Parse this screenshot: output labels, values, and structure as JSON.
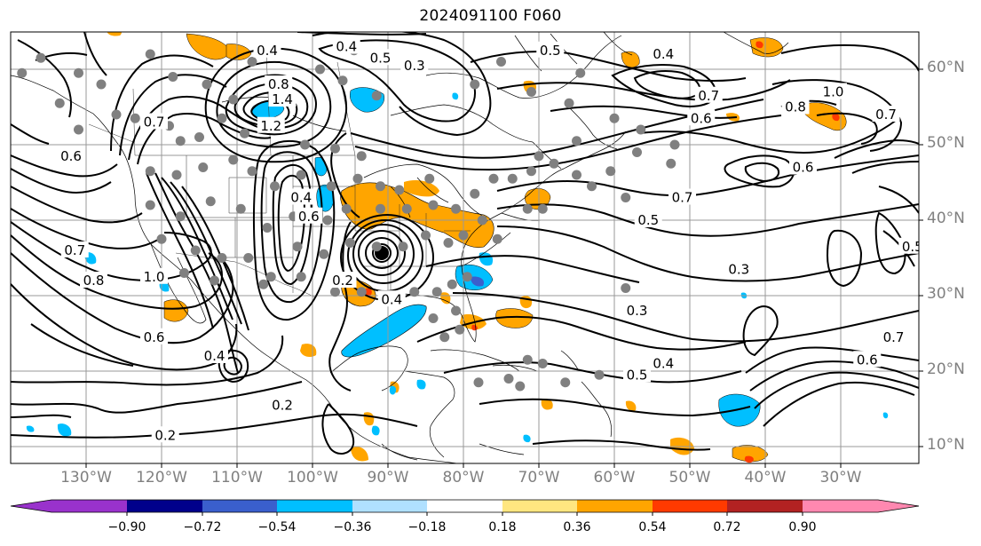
{
  "title": "2024091100 F060",
  "lat_labels": [
    "60°N",
    "50°N",
    "40°N",
    "30°N",
    "20°N",
    "10°N"
  ],
  "lon_labels": [
    "130°W",
    "120°W",
    "110°W",
    "100°W",
    "90°W",
    "80°W",
    "70°W",
    "60°W",
    "50°W",
    "40°W",
    "30°W"
  ],
  "contour_labels": [
    {
      "text": "0.2",
      "lon": -119.5,
      "lat": 11.5
    },
    {
      "text": "0.2",
      "lon": -104.0,
      "lat": 15.5
    },
    {
      "text": "0.4",
      "lon": -113.0,
      "lat": 22.0
    },
    {
      "text": "0.6",
      "lon": -121.0,
      "lat": 24.5
    },
    {
      "text": "0.7",
      "lon": -131.5,
      "lat": 36.0
    },
    {
      "text": "0.8",
      "lon": -129.0,
      "lat": 32.0
    },
    {
      "text": "1.0",
      "lon": -121.0,
      "lat": 32.5
    },
    {
      "text": "0.6",
      "lon": -132.0,
      "lat": 48.5
    },
    {
      "text": "0.7",
      "lon": -121.0,
      "lat": 53.0
    },
    {
      "text": "0.4",
      "lon": -101.5,
      "lat": 43.0
    },
    {
      "text": "0.6",
      "lon": -100.5,
      "lat": 40.5
    },
    {
      "text": "0.4",
      "lon": -95.5,
      "lat": 63.0
    },
    {
      "text": "0.5",
      "lon": -91.0,
      "lat": 61.5
    },
    {
      "text": "0.4",
      "lon": -106.0,
      "lat": 62.5
    },
    {
      "text": "0.3",
      "lon": -86.5,
      "lat": 60.5
    },
    {
      "text": "1.4",
      "lon": -104.0,
      "lat": 56.0
    },
    {
      "text": "0.8",
      "lon": -104.5,
      "lat": 58.0
    },
    {
      "text": "1.2",
      "lon": -105.5,
      "lat": 52.5
    },
    {
      "text": "0.2",
      "lon": -96.0,
      "lat": 32.0
    },
    {
      "text": "0.4",
      "lon": -89.5,
      "lat": 29.5
    },
    {
      "text": "0.7",
      "lon": -47.5,
      "lat": 56.5
    },
    {
      "text": "0.6",
      "lon": -48.5,
      "lat": 53.5
    },
    {
      "text": "0.5",
      "lon": -68.5,
      "lat": 62.5
    },
    {
      "text": "0.4",
      "lon": -53.5,
      "lat": 62.0
    },
    {
      "text": "1.0",
      "lon": -31.0,
      "lat": 57.0
    },
    {
      "text": "0.8",
      "lon": -36.0,
      "lat": 55.0
    },
    {
      "text": "0.7",
      "lon": -24.0,
      "lat": 54.0
    },
    {
      "text": "0.6",
      "lon": -35.0,
      "lat": 47.0
    },
    {
      "text": "0.7",
      "lon": -51.0,
      "lat": 43.0
    },
    {
      "text": "0.5",
      "lon": -55.5,
      "lat": 40.0
    },
    {
      "text": "0.3",
      "lon": -43.5,
      "lat": 33.5
    },
    {
      "text": "0.5",
      "lon": -20.5,
      "lat": 36.5
    },
    {
      "text": "0.3",
      "lon": -57.0,
      "lat": 28.0
    },
    {
      "text": "0.5",
      "lon": -57.0,
      "lat": 19.5
    },
    {
      "text": "0.4",
      "lon": -53.5,
      "lat": 21.0
    },
    {
      "text": "0.6",
      "lon": -26.5,
      "lat": 21.5
    },
    {
      "text": "0.7",
      "lon": -23.0,
      "lat": 24.5
    }
  ],
  "colorbar": {
    "ticks": [
      "−0.90",
      "−0.72",
      "−0.54",
      "−0.36",
      "−0.18",
      "0.18",
      "0.36",
      "0.54",
      "0.72",
      "0.90"
    ],
    "colors": [
      "#9932cc",
      "#00008b",
      "#3a5fcd",
      "#00bfff",
      "#b0e0ff",
      "#ffffff",
      "#ffe680",
      "#ffa500",
      "#ff3a00",
      "#b22222",
      "#ff88b0"
    ]
  },
  "stations": [
    [
      -138.5,
      59.5
    ],
    [
      -136.0,
      61.5
    ],
    [
      -131.0,
      59.5
    ],
    [
      -128.0,
      58.0
    ],
    [
      -121.5,
      62.0
    ],
    [
      -118.5,
      59.0
    ],
    [
      -114.0,
      58.0
    ],
    [
      -110.5,
      56.0
    ],
    [
      -108.0,
      61.0
    ],
    [
      -103.5,
      57.5
    ],
    [
      -99.0,
      60.0
    ],
    [
      -96.0,
      58.5
    ],
    [
      -94.5,
      62.5
    ],
    [
      -91.5,
      56.5
    ],
    [
      -133.5,
      55.5
    ],
    [
      -131.0,
      52.0
    ],
    [
      -126.0,
      54.0
    ],
    [
      -123.5,
      53.5
    ],
    [
      -119.0,
      52.5
    ],
    [
      -117.5,
      50.5
    ],
    [
      -115.0,
      51.0
    ],
    [
      -112.0,
      53.5
    ],
    [
      -109.0,
      51.5
    ],
    [
      -105.0,
      52.5
    ],
    [
      -101.0,
      50.0
    ],
    [
      -97.0,
      49.5
    ],
    [
      -93.5,
      48.5
    ],
    [
      -121.5,
      46.5
    ],
    [
      -118.0,
      46.0
    ],
    [
      -114.5,
      47.0
    ],
    [
      -110.5,
      48.0
    ],
    [
      -108.0,
      46.5
    ],
    [
      -105.0,
      44.5
    ],
    [
      -101.5,
      46.0
    ],
    [
      -97.5,
      44.5
    ],
    [
      -94.0,
      45.5
    ],
    [
      -91.0,
      44.5
    ],
    [
      -88.5,
      44.0
    ],
    [
      -84.5,
      45.5
    ],
    [
      -121.5,
      42.0
    ],
    [
      -117.5,
      40.5
    ],
    [
      -113.5,
      42.5
    ],
    [
      -109.5,
      41.5
    ],
    [
      -106.0,
      39.0
    ],
    [
      -102.5,
      40.5
    ],
    [
      -98.0,
      40.0
    ],
    [
      -95.5,
      41.5
    ],
    [
      -91.0,
      41.5
    ],
    [
      -87.5,
      41.5
    ],
    [
      -84.0,
      42.0
    ],
    [
      -81.0,
      41.5
    ],
    [
      -78.5,
      43.5
    ],
    [
      -120.0,
      37.5
    ],
    [
      -115.5,
      36.0
    ],
    [
      -112.0,
      35.0
    ],
    [
      -108.5,
      35.0
    ],
    [
      -105.5,
      32.5
    ],
    [
      -102.0,
      36.5
    ],
    [
      -98.5,
      35.5
    ],
    [
      -95.0,
      37.0
    ],
    [
      -91.5,
      36.5
    ],
    [
      -88.0,
      36.5
    ],
    [
      -85.0,
      38.0
    ],
    [
      -82.0,
      37.0
    ],
    [
      -80.0,
      38.0
    ],
    [
      -77.5,
      40.0
    ],
    [
      -75.5,
      37.5
    ],
    [
      -117.0,
      33.0
    ],
    [
      -113.0,
      32.0
    ],
    [
      -106.5,
      31.5
    ],
    [
      -101.5,
      32.5
    ],
    [
      -97.0,
      30.5
    ],
    [
      -93.5,
      30.5
    ],
    [
      -90.0,
      30.0
    ],
    [
      -86.5,
      30.5
    ],
    [
      -83.5,
      30.5
    ],
    [
      -81.5,
      31.5
    ],
    [
      -79.5,
      32.5
    ],
    [
      -81.0,
      28.0
    ],
    [
      -84.0,
      27.0
    ],
    [
      -82.5,
      24.5
    ],
    [
      -80.5,
      25.5
    ],
    [
      -71.5,
      21.5
    ],
    [
      -78.0,
      18.5
    ],
    [
      -74.0,
      19.0
    ],
    [
      -69.5,
      21.0
    ],
    [
      -66.5,
      18.5
    ],
    [
      -62.0,
      19.5
    ],
    [
      -72.5,
      18.0
    ],
    [
      -58.5,
      31.0
    ],
    [
      -76.0,
      45.5
    ],
    [
      -73.5,
      45.5
    ],
    [
      -71.0,
      46.5
    ],
    [
      -68.0,
      47.5
    ],
    [
      -65.0,
      46.0
    ],
    [
      -63.0,
      44.5
    ],
    [
      -60.5,
      46.5
    ],
    [
      -57.0,
      49.0
    ],
    [
      -56.5,
      52.0
    ],
    [
      -60.0,
      53.5
    ],
    [
      -65.0,
      50.5
    ],
    [
      -70.0,
      48.5
    ],
    [
      -66.0,
      55.5
    ],
    [
      -71.0,
      57.0
    ],
    [
      -78.5,
      58.0
    ],
    [
      -75.0,
      61.0
    ],
    [
      -64.5,
      59.5
    ],
    [
      -52.5,
      47.5
    ],
    [
      -52.0,
      50.0
    ],
    [
      -58.5,
      43.0
    ],
    [
      -69.5,
      41.5
    ],
    [
      -71.5,
      41.5
    ]
  ]
}
